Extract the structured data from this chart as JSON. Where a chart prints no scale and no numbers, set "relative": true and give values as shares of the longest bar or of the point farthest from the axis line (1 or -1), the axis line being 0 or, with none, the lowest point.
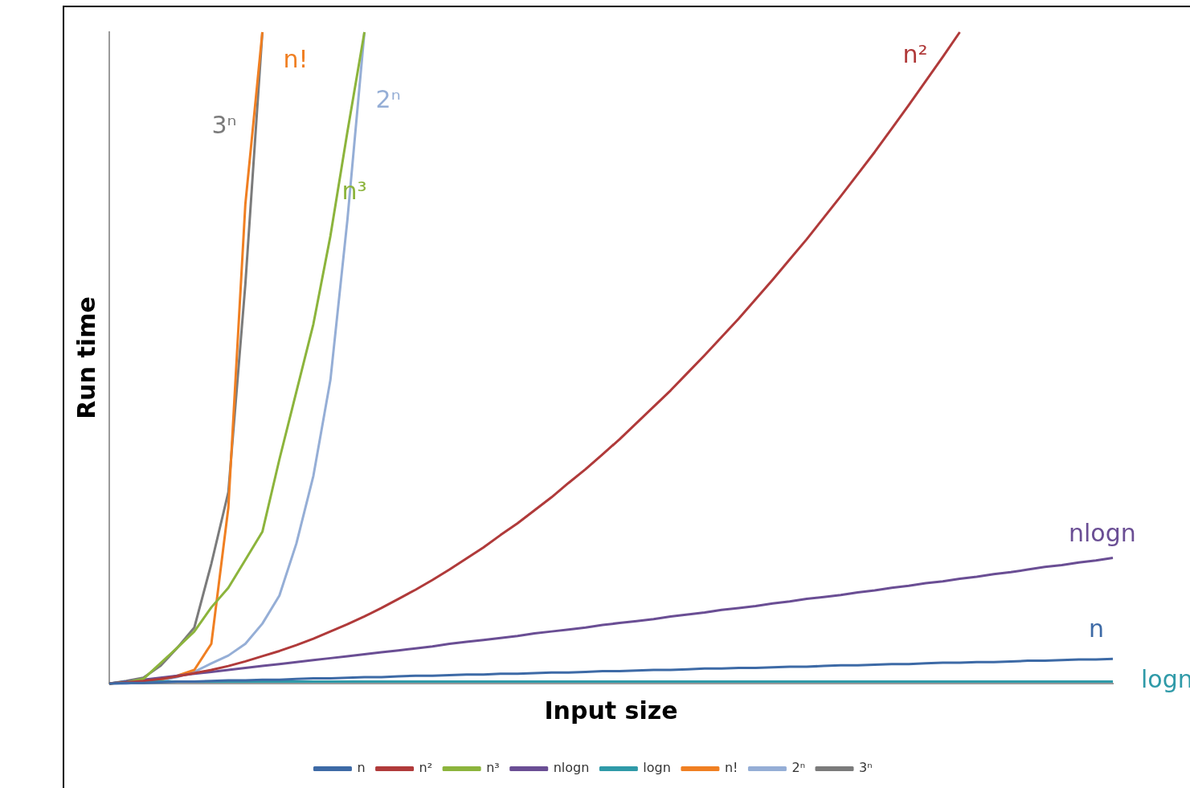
{
  "chart_data": {
    "type": "line",
    "xlabel": "Input size",
    "ylabel": "Run time",
    "relative": true,
    "legend": "bottom",
    "categories": [
      null,
      null,
      null,
      null,
      null,
      null,
      null,
      null,
      null,
      null,
      null,
      null,
      null,
      null,
      null,
      null,
      null,
      null,
      null,
      null,
      null,
      null,
      null,
      null,
      null,
      null,
      null,
      null,
      null,
      null,
      null,
      null,
      null,
      null,
      null,
      null,
      null,
      null,
      null,
      null,
      null,
      null,
      null,
      null,
      null,
      null,
      null,
      null,
      null,
      null,
      null,
      null,
      null,
      null,
      null,
      null,
      null,
      null,
      null,
      null
    ],
    "series": [
      {
        "name": "n",
        "color": "#3d6aa6",
        "values": [
          0,
          0.001,
          0.001,
          0.002,
          0.003,
          0.003,
          0.004,
          0.005,
          0.005,
          0.006,
          0.006,
          0.007,
          0.008,
          0.008,
          0.009,
          0.01,
          0.01,
          0.011,
          0.012,
          0.012,
          0.013,
          0.014,
          0.014,
          0.015,
          0.015,
          0.016,
          0.017,
          0.017,
          0.018,
          0.019,
          0.019,
          0.02,
          0.021,
          0.021,
          0.022,
          0.023,
          0.023,
          0.024,
          0.024,
          0.025,
          0.026,
          0.026,
          0.027,
          0.028,
          0.028,
          0.029,
          0.03,
          0.03,
          0.031,
          0.032,
          0.032,
          0.033,
          0.033,
          0.034,
          0.035,
          0.035,
          0.036,
          0.037,
          0.037,
          0.038
        ]
      },
      {
        "name": "n²",
        "color": "#b03a3a",
        "values": [
          0,
          0.002,
          0.004,
          0.007,
          0.011,
          0.016,
          0.021,
          0.027,
          0.034,
          0.042,
          0.05,
          0.059,
          0.069,
          0.08,
          0.091,
          0.103,
          0.116,
          0.13,
          0.144,
          0.159,
          0.175,
          0.192,
          0.209,
          0.228,
          0.246,
          0.266,
          0.286,
          0.308,
          0.329,
          0.352,
          0.375,
          0.4,
          0.425,
          0.45,
          0.477,
          0.504,
          0.532,
          0.56,
          0.59,
          0.62,
          0.651,
          0.682,
          0.715,
          0.748,
          0.782,
          0.816,
          0.852,
          0.888,
          0.925,
          0.962,
          1,
          null,
          null,
          null,
          null,
          null,
          null,
          null,
          null,
          null
        ]
      },
      {
        "name": "n³",
        "color": "#8cb43c",
        "values": [
          0,
          0.002,
          0.007,
          0.031,
          0.055,
          0.08,
          0.117,
          0.147,
          0.19,
          0.233,
          0.344,
          0.448,
          0.552,
          0.687,
          0.847,
          1,
          null,
          null,
          null,
          null,
          null,
          null,
          null,
          null,
          null,
          null,
          null,
          null,
          null,
          null,
          null,
          null,
          null,
          null,
          null,
          null,
          null,
          null,
          null,
          null,
          null,
          null,
          null,
          null,
          null,
          null,
          null,
          null,
          null,
          null,
          null,
          null,
          null,
          null,
          null,
          null,
          null,
          null,
          null,
          null
        ]
      },
      {
        "name": "nlogn",
        "color": "#6a4e94",
        "values": [
          0,
          0.003,
          0.006,
          0.009,
          0.012,
          0.015,
          0.018,
          0.021,
          0.024,
          0.027,
          0.03,
          0.033,
          0.036,
          0.039,
          0.042,
          0.045,
          0.048,
          0.051,
          0.054,
          0.057,
          0.061,
          0.064,
          0.067,
          0.07,
          0.073,
          0.077,
          0.08,
          0.083,
          0.086,
          0.09,
          0.093,
          0.096,
          0.099,
          0.103,
          0.106,
          0.109,
          0.113,
          0.116,
          0.119,
          0.123,
          0.126,
          0.13,
          0.133,
          0.136,
          0.14,
          0.143,
          0.147,
          0.15,
          0.154,
          0.157,
          0.161,
          0.164,
          0.168,
          0.171,
          0.175,
          0.179,
          0.182,
          0.186,
          0.189,
          0.193
        ]
      },
      {
        "name": "logn",
        "color": "#2f9aa8",
        "values": [
          0,
          0.003,
          0.003,
          0.003,
          0.003,
          0.003,
          0.003,
          0.003,
          0.003,
          0.003,
          0.003,
          0.003,
          0.003,
          0.003,
          0.003,
          0.003,
          0.003,
          0.003,
          0.003,
          0.003,
          0.003,
          0.003,
          0.003,
          0.003,
          0.003,
          0.003,
          0.003,
          0.003,
          0.003,
          0.003,
          0.003,
          0.003,
          0.003,
          0.003,
          0.003,
          0.003,
          0.003,
          0.003,
          0.003,
          0.003,
          0.003,
          0.003,
          0.003,
          0.003,
          0.003,
          0.003,
          0.003,
          0.003,
          0.003,
          0.003,
          0.003,
          0.003,
          0.003,
          0.003,
          0.003,
          0.003,
          0.003,
          0.003,
          0.003,
          0.003
        ]
      },
      {
        "name": "n!",
        "color": "#f07f22",
        "values": [
          null,
          null,
          0.003,
          0.006,
          0.012,
          0.021,
          0.061,
          0.27,
          0.736,
          1,
          null,
          null,
          null,
          null,
          null,
          null,
          null,
          null,
          null,
          null,
          null,
          null,
          null,
          null,
          null,
          null,
          null,
          null,
          null,
          null,
          null,
          null,
          null,
          null,
          null,
          null,
          null,
          null,
          null,
          null,
          null,
          null,
          null,
          null,
          null,
          null,
          null,
          null,
          null,
          null,
          null,
          null,
          null,
          null,
          null,
          null,
          null,
          null,
          null,
          null
        ]
      },
      {
        "name": "2ⁿ",
        "color": "#95aed6",
        "values": [
          0,
          0,
          0.002,
          0.004,
          0.01,
          0.018,
          0.031,
          0.043,
          0.061,
          0.092,
          0.135,
          0.215,
          0.319,
          0.466,
          0.712,
          1,
          null,
          null,
          null,
          null,
          null,
          null,
          null,
          null,
          null,
          null,
          null,
          null,
          null,
          null,
          null,
          null,
          null,
          null,
          null,
          null,
          null,
          null,
          null,
          null,
          null,
          null,
          null,
          null,
          null,
          null,
          null,
          null,
          null,
          null,
          null,
          null,
          null,
          null,
          null,
          null,
          null,
          null,
          null,
          null
        ]
      },
      {
        "name": "3ⁿ",
        "color": "#7b7b7b",
        "values": [
          0,
          0.004,
          0.009,
          0.027,
          0.055,
          0.086,
          0.184,
          0.294,
          0.613,
          1,
          null,
          null,
          null,
          null,
          null,
          null,
          null,
          null,
          null,
          null,
          null,
          null,
          null,
          null,
          null,
          null,
          null,
          null,
          null,
          null,
          null,
          null,
          null,
          null,
          null,
          null,
          null,
          null,
          null,
          null,
          null,
          null,
          null,
          null,
          null,
          null,
          null,
          null,
          null,
          null,
          null,
          null,
          null,
          null,
          null,
          null,
          null,
          null,
          null,
          null
        ]
      }
    ]
  }
}
